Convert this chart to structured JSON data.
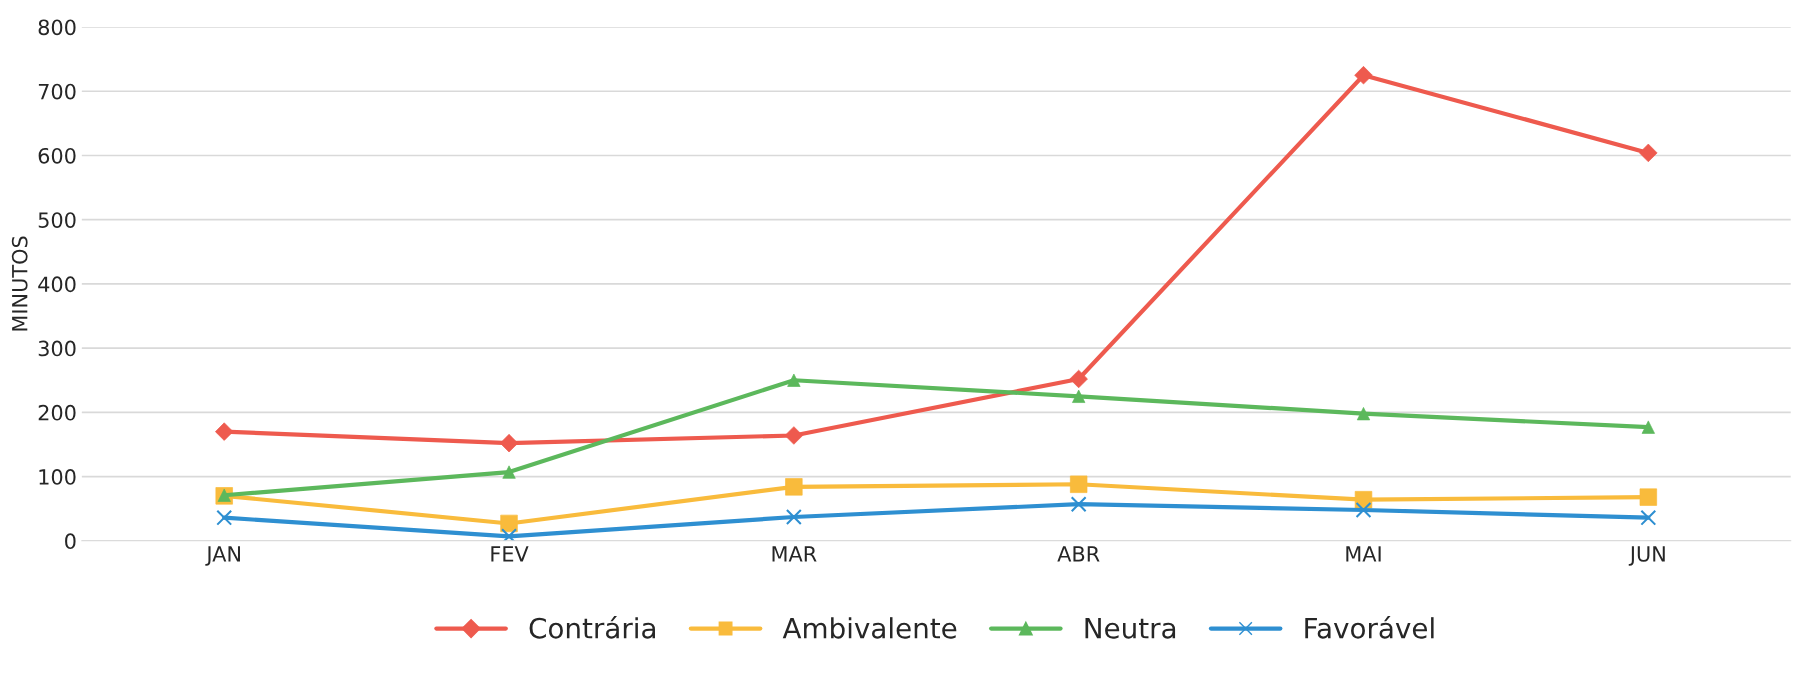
{
  "chart_data": {
    "type": "line",
    "ylabel": "MINUTOS",
    "categories": [
      "JAN",
      "FEV",
      "MAR",
      "ABR",
      "MAI",
      "JUN"
    ],
    "series": [
      {
        "name": "Contrária",
        "color": "#ee5a4e",
        "marker": "diamond",
        "values": [
          170,
          152,
          164,
          252,
          725,
          604
        ]
      },
      {
        "name": "Ambivalente",
        "color": "#f9bb3c",
        "marker": "square",
        "values": [
          70,
          27,
          84,
          88,
          64,
          68
        ]
      },
      {
        "name": "Neutra",
        "color": "#5cb85c",
        "marker": "triangle",
        "values": [
          71,
          107,
          250,
          225,
          198,
          177
        ]
      },
      {
        "name": "Favorável",
        "color": "#2e8fd1",
        "marker": "cross",
        "values": [
          36,
          7,
          37,
          57,
          48,
          36
        ]
      }
    ],
    "ylim": [
      0,
      800
    ],
    "yticks": [
      0,
      100,
      200,
      300,
      400,
      500,
      600,
      700,
      800
    ],
    "grid": "y",
    "legend": "bottom",
    "line_style": "solid"
  }
}
